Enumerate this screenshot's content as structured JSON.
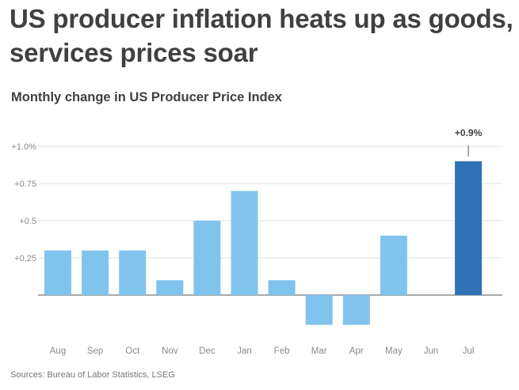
{
  "headline": "US producer inflation heats up as goods, services prices soar",
  "source": "Sources: Bureau of Labor Statistics, LSEG",
  "colors": {
    "bar": "#80c4ed",
    "highlight": "#2f73b6",
    "grid": "#e0e0e0",
    "axis_text": "#8a8a8a",
    "text": "#404040"
  },
  "chart_data": {
    "type": "bar",
    "title": "Monthly change in US Producer Price Index",
    "categories": [
      "Aug",
      "Sep",
      "Oct",
      "Nov",
      "Dec",
      "Jan",
      "Feb",
      "Mar",
      "Apr",
      "May",
      "Jun",
      "Jul"
    ],
    "values": [
      0.3,
      0.3,
      0.3,
      0.1,
      0.5,
      0.7,
      0.1,
      -0.2,
      -0.2,
      0.4,
      0.0,
      0.9
    ],
    "ylim": [
      -0.45,
      1.05
    ],
    "yticks": [
      0.25,
      0.5,
      0.75,
      1.0
    ],
    "ytick_labels": [
      "+0.25",
      "+0.5",
      "+0.75",
      "+1.0%"
    ],
    "grid": true,
    "highlight_index": 11,
    "annotation": {
      "index": 11,
      "label": "+0.9%"
    },
    "xlabel": "",
    "ylabel": ""
  }
}
